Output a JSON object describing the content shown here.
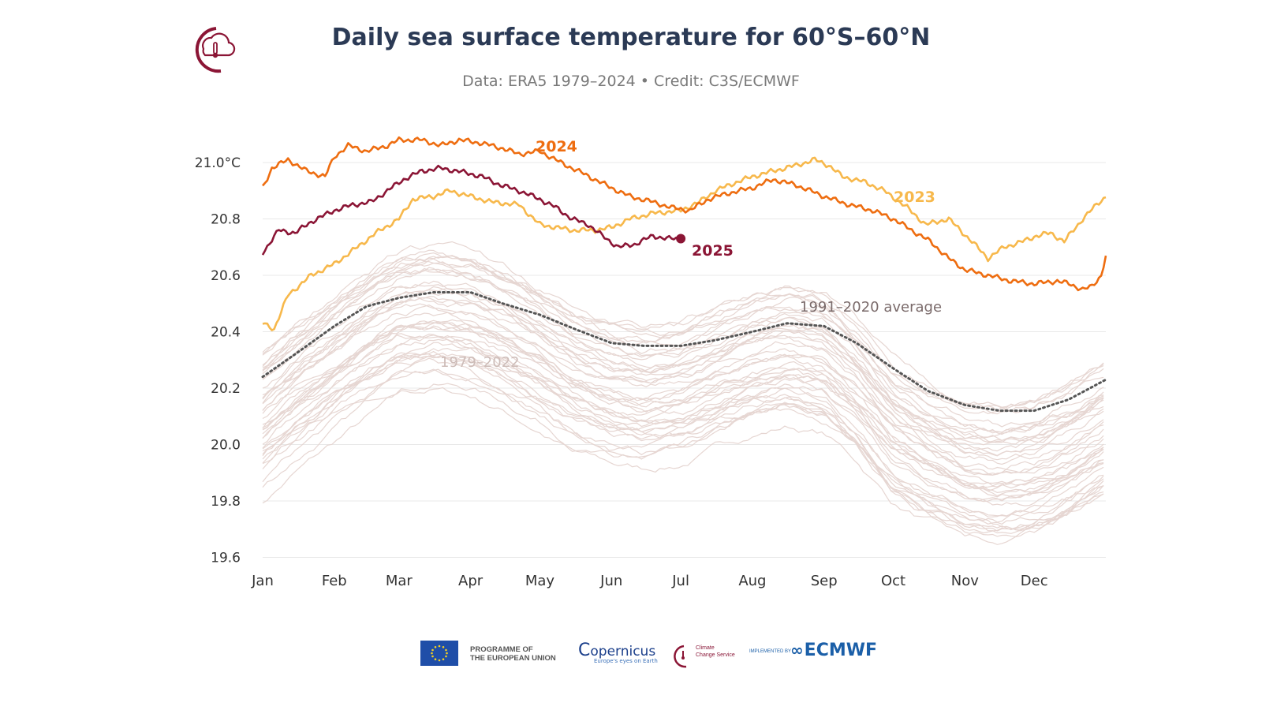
{
  "header": {
    "title": "Daily sea surface temperature for 60°S–60°N",
    "subtitle": "Data: ERA5 1979–2024 • Credit: C3S/ECMWF"
  },
  "footer": {
    "eu_line1": "PROGRAMME OF",
    "eu_line2": "THE EUROPEAN UNION",
    "copernicus": "opernicus",
    "copernicus_tagline": "Europe's eyes on Earth",
    "c3s_line1": "Climate",
    "c3s_line2": "Change Service",
    "implemented_by": "IMPLEMENTED BY",
    "ecmwf": "ECMWF"
  },
  "colors": {
    "y2024": "#ee6d10",
    "y2023": "#f7b84b",
    "y2025": "#8b1535",
    "history": "#e6d6d2",
    "average": "#555555",
    "grid": "#e8e8e8",
    "title": "#2b3a55"
  },
  "chart_data": {
    "type": "line",
    "title": "Daily sea surface temperature for 60°S–60°N",
    "xlabel": "",
    "ylabel": "",
    "ylim": [
      19.6,
      21.05
    ],
    "xlim_day": [
      1,
      366
    ],
    "grid": true,
    "months": [
      "Jan",
      "Feb",
      "Mar",
      "Apr",
      "May",
      "Jun",
      "Jul",
      "Aug",
      "Sep",
      "Oct",
      "Nov",
      "Dec"
    ],
    "yticks": [
      "21.0°C",
      "20.8",
      "20.6",
      "20.4",
      "20.2",
      "20.0",
      "19.8",
      "19.6"
    ],
    "history_band": {
      "label": "1979–2022",
      "center": [
        [
          1,
          20.1
        ],
        [
          15,
          20.2
        ],
        [
          32,
          20.3
        ],
        [
          46,
          20.38
        ],
        [
          60,
          20.45
        ],
        [
          75,
          20.47
        ],
        [
          91,
          20.45
        ],
        [
          105,
          20.4
        ],
        [
          121,
          20.33
        ],
        [
          136,
          20.25
        ],
        [
          152,
          20.2
        ],
        [
          166,
          20.18
        ],
        [
          182,
          20.2
        ],
        [
          197,
          20.25
        ],
        [
          213,
          20.3
        ],
        [
          228,
          20.33
        ],
        [
          244,
          20.3
        ],
        [
          258,
          20.2
        ],
        [
          274,
          20.05
        ],
        [
          289,
          19.98
        ],
        [
          305,
          19.92
        ],
        [
          320,
          19.9
        ],
        [
          335,
          19.92
        ],
        [
          350,
          19.97
        ],
        [
          366,
          20.05
        ]
      ],
      "count": 44
    },
    "series": [
      {
        "name": "1991–2020 average",
        "style": "dotted",
        "points": [
          [
            1,
            20.24
          ],
          [
            15,
            20.32
          ],
          [
            32,
            20.42
          ],
          [
            46,
            20.49
          ],
          [
            60,
            20.52
          ],
          [
            75,
            20.54
          ],
          [
            91,
            20.54
          ],
          [
            105,
            20.5
          ],
          [
            121,
            20.46
          ],
          [
            136,
            20.41
          ],
          [
            152,
            20.36
          ],
          [
            166,
            20.35
          ],
          [
            182,
            20.35
          ],
          [
            197,
            20.37
          ],
          [
            213,
            20.4
          ],
          [
            228,
            20.43
          ],
          [
            244,
            20.42
          ],
          [
            258,
            20.36
          ],
          [
            274,
            20.27
          ],
          [
            289,
            20.19
          ],
          [
            305,
            20.14
          ],
          [
            320,
            20.12
          ],
          [
            335,
            20.12
          ],
          [
            350,
            20.16
          ],
          [
            366,
            20.23
          ]
        ]
      },
      {
        "name": "2023",
        "points": [
          [
            1,
            20.43
          ],
          [
            6,
            20.41
          ],
          [
            12,
            20.53
          ],
          [
            22,
            20.6
          ],
          [
            32,
            20.64
          ],
          [
            42,
            20.7
          ],
          [
            50,
            20.75
          ],
          [
            60,
            20.8
          ],
          [
            66,
            20.87
          ],
          [
            75,
            20.88
          ],
          [
            82,
            20.9
          ],
          [
            91,
            20.88
          ],
          [
            100,
            20.86
          ],
          [
            112,
            20.85
          ],
          [
            121,
            20.78
          ],
          [
            135,
            20.76
          ],
          [
            145,
            20.76
          ],
          [
            152,
            20.77
          ],
          [
            160,
            20.8
          ],
          [
            170,
            20.82
          ],
          [
            182,
            20.83
          ],
          [
            190,
            20.86
          ],
          [
            197,
            20.9
          ],
          [
            206,
            20.93
          ],
          [
            213,
            20.95
          ],
          [
            222,
            20.97
          ],
          [
            232,
            20.99
          ],
          [
            240,
            21.01
          ],
          [
            246,
            20.99
          ],
          [
            252,
            20.95
          ],
          [
            262,
            20.93
          ],
          [
            270,
            20.9
          ],
          [
            280,
            20.84
          ],
          [
            288,
            20.78
          ],
          [
            298,
            20.8
          ],
          [
            308,
            20.72
          ],
          [
            315,
            20.66
          ],
          [
            322,
            20.7
          ],
          [
            330,
            20.72
          ],
          [
            336,
            20.74
          ],
          [
            342,
            20.75
          ],
          [
            348,
            20.72
          ],
          [
            356,
            20.8
          ],
          [
            362,
            20.85
          ],
          [
            366,
            20.88
          ]
        ]
      },
      {
        "name": "2024",
        "points": [
          [
            1,
            20.91
          ],
          [
            5,
            20.98
          ],
          [
            12,
            21.01
          ],
          [
            20,
            20.97
          ],
          [
            28,
            20.95
          ],
          [
            32,
            21.02
          ],
          [
            38,
            21.06
          ],
          [
            46,
            21.04
          ],
          [
            55,
            21.06
          ],
          [
            60,
            21.08
          ],
          [
            70,
            21.08
          ],
          [
            78,
            21.06
          ],
          [
            86,
            21.08
          ],
          [
            95,
            21.07
          ],
          [
            105,
            21.05
          ],
          [
            112,
            21.03
          ],
          [
            121,
            21.04
          ],
          [
            130,
            21.0
          ],
          [
            140,
            20.96
          ],
          [
            152,
            20.91
          ],
          [
            160,
            20.88
          ],
          [
            170,
            20.86
          ],
          [
            178,
            20.84
          ],
          [
            186,
            20.83
          ],
          [
            194,
            20.87
          ],
          [
            202,
            20.89
          ],
          [
            213,
            20.91
          ],
          [
            222,
            20.94
          ],
          [
            232,
            20.92
          ],
          [
            244,
            20.88
          ],
          [
            255,
            20.85
          ],
          [
            265,
            20.83
          ],
          [
            274,
            20.8
          ],
          [
            282,
            20.76
          ],
          [
            290,
            20.72
          ],
          [
            298,
            20.66
          ],
          [
            305,
            20.62
          ],
          [
            315,
            20.6
          ],
          [
            325,
            20.58
          ],
          [
            335,
            20.57
          ],
          [
            345,
            20.58
          ],
          [
            350,
            20.57
          ],
          [
            356,
            20.55
          ],
          [
            360,
            20.56
          ],
          [
            364,
            20.6
          ],
          [
            366,
            20.67
          ]
        ]
      },
      {
        "name": "2025",
        "points": [
          [
            1,
            20.68
          ],
          [
            8,
            20.76
          ],
          [
            15,
            20.75
          ],
          [
            22,
            20.79
          ],
          [
            32,
            20.83
          ],
          [
            40,
            20.85
          ],
          [
            48,
            20.86
          ],
          [
            55,
            20.9
          ],
          [
            62,
            20.94
          ],
          [
            70,
            20.97
          ],
          [
            78,
            20.98
          ],
          [
            85,
            20.97
          ],
          [
            91,
            20.96
          ],
          [
            96,
            20.95
          ],
          [
            104,
            20.92
          ],
          [
            112,
            20.9
          ],
          [
            121,
            20.87
          ],
          [
            128,
            20.84
          ],
          [
            135,
            20.8
          ],
          [
            142,
            20.78
          ],
          [
            148,
            20.74
          ],
          [
            155,
            20.7
          ],
          [
            162,
            20.71
          ],
          [
            170,
            20.74
          ],
          [
            176,
            20.73
          ],
          [
            182,
            20.73
          ]
        ]
      }
    ],
    "annotations": [
      {
        "text": "2024"
      },
      {
        "text": "2023"
      },
      {
        "text": "2025"
      },
      {
        "text": "1991–2020 average"
      },
      {
        "text": "1979–2022"
      }
    ]
  }
}
